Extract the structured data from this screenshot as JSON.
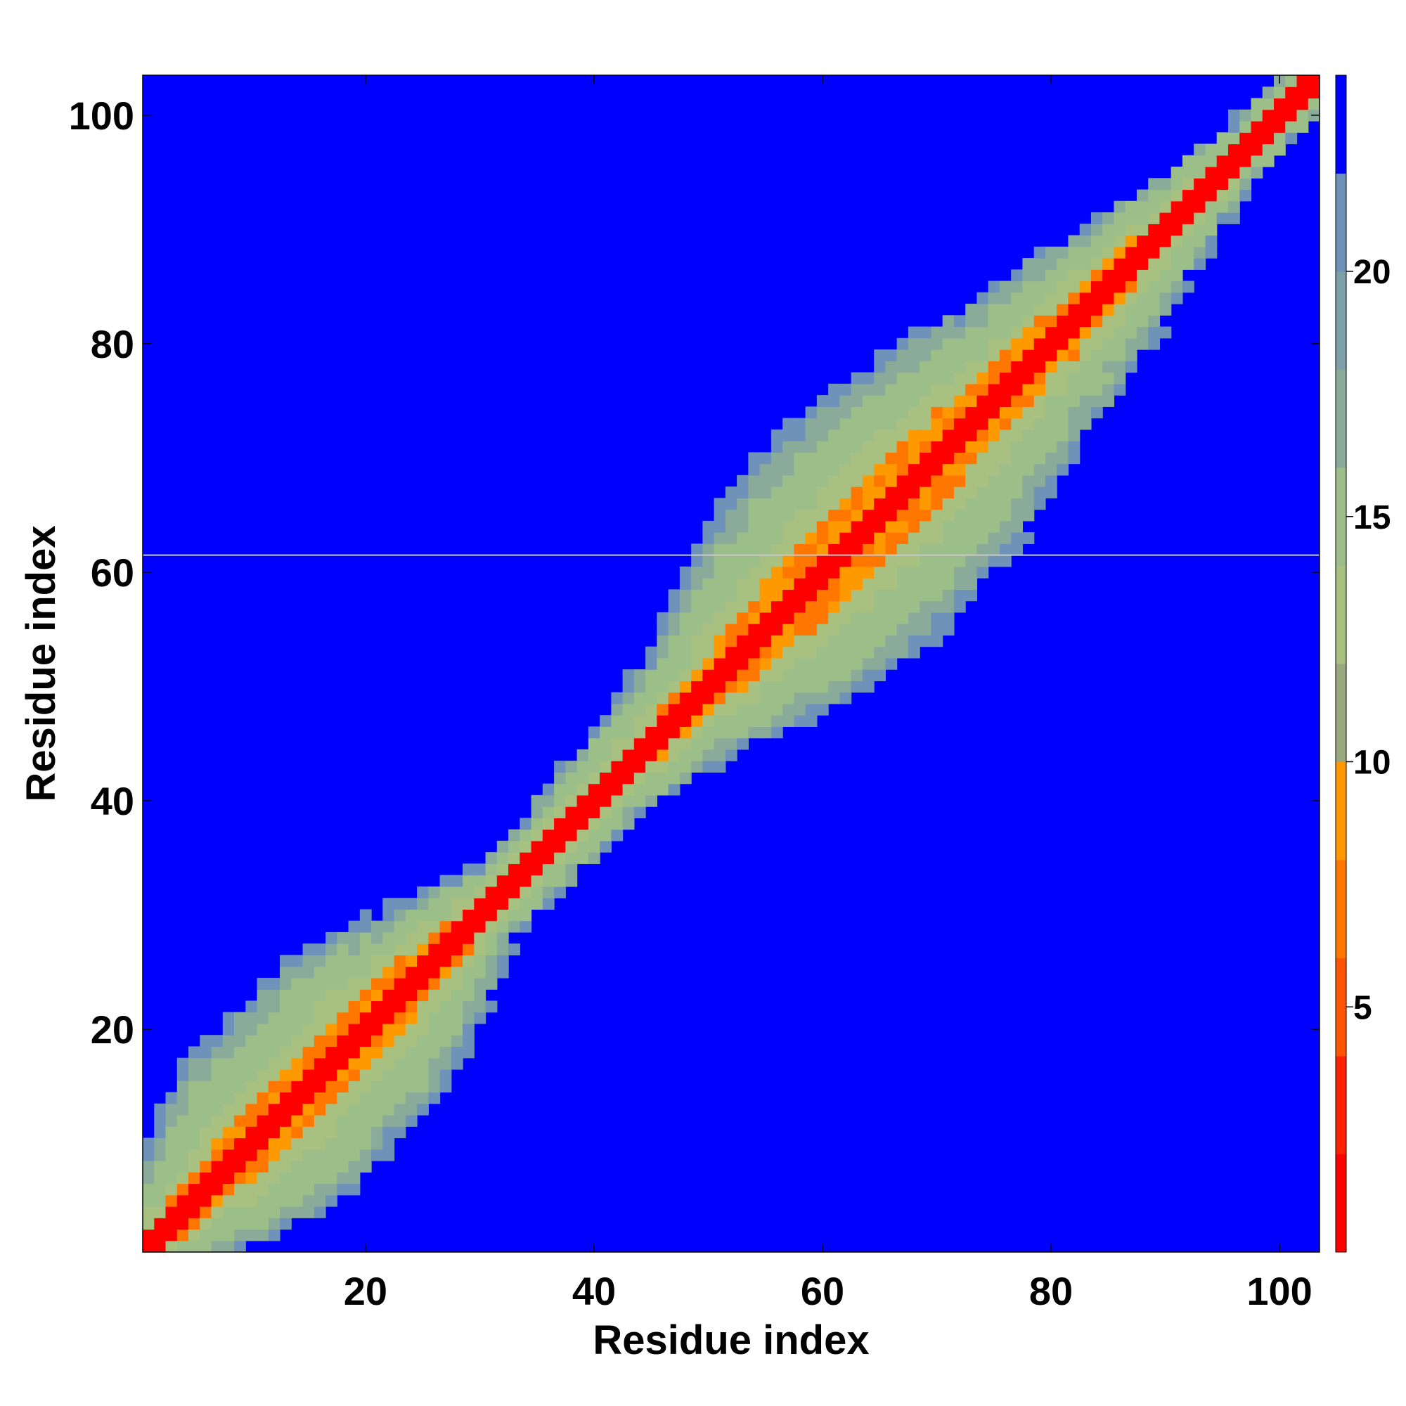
{
  "chart_data": {
    "type": "heatmap",
    "title": "",
    "xlabel": "Residue index",
    "ylabel": "Residue index",
    "xlim": [
      0.5,
      103.5
    ],
    "ylim": [
      0.5,
      103.5
    ],
    "x_ticks": [
      20,
      40,
      60,
      80,
      100
    ],
    "y_ticks": [
      20,
      40,
      60,
      80,
      100
    ],
    "colorbar": {
      "range": [
        0,
        24
      ],
      "ticks": [
        5,
        10,
        15,
        20
      ],
      "color_levels": [
        "#ff0000",
        "#ff2200",
        "#ff5500",
        "#ff7700",
        "#ff9900",
        "#9aa880",
        "#a8c080",
        "#9cbf8a",
        "#8bab9a",
        "#7ea0a8",
        "#6f92b8",
        "#0000ff"
      ]
    },
    "colors": {
      "background": "#0000ff",
      "diagonal": "#ff0000",
      "band": "#ff7700",
      "halo": "#a8c080",
      "edge": "#6f92b8",
      "separator_line": "#c8c8c8"
    },
    "separator_line_y": 61.5,
    "n_residues": 103,
    "band_profile": {
      "description_x": [
        1,
        10,
        20,
        26,
        31,
        36,
        42,
        48,
        53,
        58,
        64,
        70,
        76,
        84,
        90,
        96,
        103
      ],
      "halo_halfwidth": [
        5,
        13,
        13,
        9,
        5,
        5,
        6,
        8,
        12,
        15,
        16,
        15,
        12,
        9,
        6,
        4,
        3
      ]
    }
  }
}
